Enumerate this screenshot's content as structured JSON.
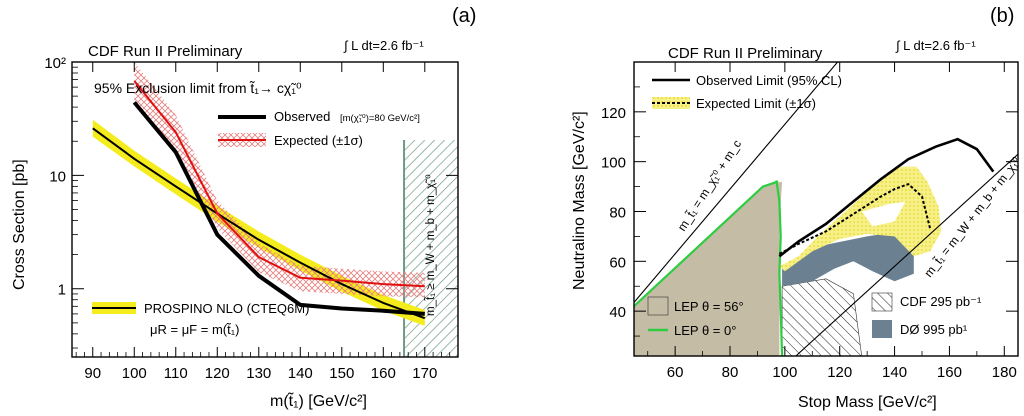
{
  "chart_data": [
    {
      "type": "line",
      "panel_label": "(a)",
      "title": "CDF Run II Preliminary",
      "luminosity": "∫ L dt=2.6 fb⁻¹",
      "subtitle": "95% Exclusion limit from t̃₁→ cχ̃₁⁰",
      "xlabel": "m(t̃₁) [GeV/c²]",
      "ylabel": "Cross Section [pb]",
      "xlim": [
        85,
        178
      ],
      "ylim": [
        0.25,
        100
      ],
      "yscale": "log",
      "x_ticks": [
        "90",
        "100",
        "110",
        "120",
        "130",
        "140",
        "150",
        "160",
        "170"
      ],
      "y_ticks": [
        "1",
        "10",
        "10²"
      ],
      "excluded_region_label": "m_t̃₁ ≥ m_W + m_b + m_χ̃₁⁰",
      "excluded_region_x": [
        165,
        178
      ],
      "legend_color_key": {
        "observed": "#000000",
        "expected": "#e01010",
        "expected_band": "#e88080",
        "theory_band": "#f4ec1c",
        "hatch": "#6e9a86"
      },
      "series": [
        {
          "name": "Observed",
          "note": "[m(χ̃₁⁰)=80 GeV/c²]",
          "x": [
            100,
            110,
            120,
            130,
            140,
            150,
            160,
            170
          ],
          "y": [
            44,
            16,
            3.0,
            1.3,
            0.72,
            0.67,
            0.64,
            0.6
          ]
        },
        {
          "name": "Expected (±1σ)",
          "x": [
            100,
            110,
            120,
            130,
            140,
            150,
            160,
            170
          ],
          "y": [
            68,
            24,
            4.6,
            1.9,
            1.25,
            1.18,
            1.1,
            1.05
          ],
          "band_lo": [
            45,
            17,
            3.4,
            1.4,
            0.95,
            0.9,
            0.86,
            0.84
          ],
          "band_hi": [
            100,
            34,
            6.0,
            2.5,
            1.6,
            1.5,
            1.42,
            1.38
          ]
        },
        {
          "name": "PROSPINO NLO (CTEQ6M)",
          "x": [
            90,
            100,
            110,
            120,
            130,
            140,
            150,
            160,
            170
          ],
          "y": [
            26,
            14,
            8.0,
            4.6,
            2.7,
            1.7,
            1.1,
            0.75,
            0.55
          ],
          "band_lo": [
            22,
            12,
            6.8,
            3.9,
            2.3,
            1.45,
            0.94,
            0.64,
            0.47
          ],
          "band_hi": [
            31,
            16.5,
            9.4,
            5.4,
            3.2,
            2.0,
            1.3,
            0.88,
            0.65
          ]
        }
      ],
      "legend": [
        "Observed",
        "Expected (±1σ)",
        "PROSPINO NLO (CTEQ6M)"
      ],
      "scale_label": "μR = μF = m(t̃₁)"
    },
    {
      "type": "area",
      "panel_label": "(b)",
      "title": "CDF Run II Preliminary",
      "luminosity": "∫ L dt=2.6 fb⁻¹",
      "xlabel": "Stop Mass [GeV/c²]",
      "ylabel": "Neutralino Mass [GeV/c²]",
      "xlim": [
        45,
        185
      ],
      "ylim": [
        22,
        140
      ],
      "x_ticks": [
        "60",
        "80",
        "100",
        "120",
        "140",
        "160",
        "180"
      ],
      "y_ticks": [
        "40",
        "60",
        "80",
        "100",
        "120"
      ],
      "legend": [
        "Observed Limit (95% CL)",
        "Expected Limit (±1σ)"
      ],
      "region_labels": [
        "LEP θ = 56°",
        "LEP θ = 0°",
        "CDF 295 pb⁻¹",
        "DØ 995 pb¹"
      ],
      "kinematic_lines": [
        "m_t̃₁ = m_χ̃₁⁰ + m_c",
        "m_t̃₁ = m_W + m_b + m_χ̃₁⁰"
      ],
      "colors": {
        "lep56": "#c5bca6",
        "lep0": "#2ecc40",
        "d0": "#6b8192",
        "yellow": "#f2ee6a",
        "observed": "#000000"
      },
      "observed_limit": {
        "x": [
          98,
          105,
          115,
          125,
          135,
          145,
          155,
          163,
          170,
          176
        ],
        "y": [
          62,
          68,
          75,
          84,
          93,
          101,
          106,
          109,
          105,
          96
        ]
      },
      "expected_limit": {
        "x": [
          98,
          105,
          115,
          125,
          135,
          140,
          145,
          150,
          153
        ],
        "y": [
          63,
          67,
          72,
          79,
          86,
          89,
          91,
          86,
          73
        ]
      },
      "lep0_boundary": {
        "x": [
          97,
          98,
          98.5,
          98,
          98.5,
          99
        ],
        "y": [
          92,
          84,
          70,
          55,
          40,
          22
        ]
      }
    }
  ]
}
